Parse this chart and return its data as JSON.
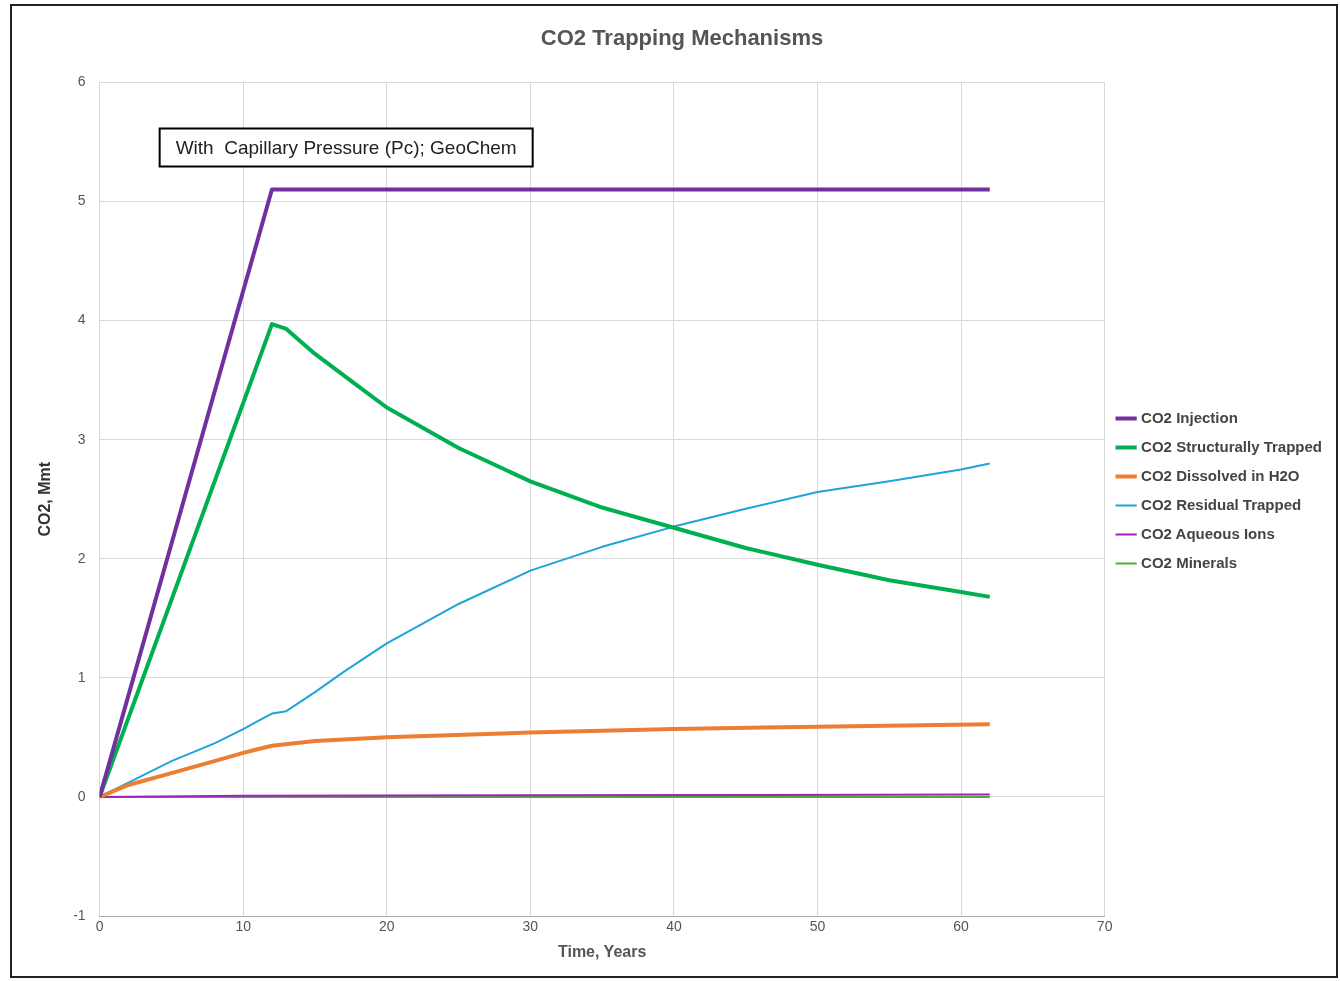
{
  "chart_data": {
    "type": "line",
    "title": "CO2 Trapping Mechanisms",
    "xlabel": "Time, Years",
    "ylabel": "CO2, Mmt",
    "annotations": [
      "With  Capillary Pressure (Pc); GeoChem"
    ],
    "xlim": [
      0,
      70
    ],
    "xticks": [
      0,
      10,
      20,
      30,
      40,
      50,
      60,
      70
    ],
    "ylim": [
      -1,
      6
    ],
    "yticks": [
      -1,
      0,
      1,
      2,
      3,
      4,
      5,
      6
    ],
    "grid": true,
    "legend": "right",
    "marker": "none",
    "line_style": "solid",
    "series": [
      {
        "name": "CO2 Injection",
        "color": "#7030a0",
        "x": [
          0,
          12,
          62
        ],
        "values": [
          0,
          5.1,
          5.1
        ]
      },
      {
        "name": "CO2 Structurally Trapped",
        "color": "#00b050",
        "x": [
          0,
          12,
          13,
          15,
          18,
          20,
          25,
          30,
          35,
          40,
          45,
          50,
          55,
          60,
          62
        ],
        "values": [
          0,
          3.97,
          3.93,
          3.72,
          3.45,
          3.27,
          2.93,
          2.65,
          2.43,
          2.26,
          2.09,
          1.95,
          1.82,
          1.72,
          1.68
        ]
      },
      {
        "name": "CO2 Dissolved in H2O",
        "color": "#ed7d31",
        "x": [
          0,
          2,
          5,
          8,
          10,
          12,
          15,
          20,
          30,
          40,
          50,
          62
        ],
        "values": [
          0,
          0.1,
          0.2,
          0.3,
          0.37,
          0.43,
          0.47,
          0.5,
          0.54,
          0.57,
          0.59,
          0.61
        ]
      },
      {
        "name": "CO2 Residual Trapped",
        "color": "#1fa3dc",
        "x": [
          0,
          2,
          5,
          8,
          10,
          12,
          13,
          15,
          17,
          20,
          25,
          30,
          35,
          40,
          45,
          50,
          55,
          60,
          62
        ],
        "values": [
          0,
          0.12,
          0.3,
          0.45,
          0.57,
          0.7,
          0.72,
          0.88,
          1.05,
          1.29,
          1.62,
          1.9,
          2.1,
          2.27,
          2.42,
          2.56,
          2.65,
          2.75,
          2.8
        ]
      },
      {
        "name": "CO2 Aqueous Ions",
        "color": "#a020c0",
        "x": [
          0,
          10,
          62
        ],
        "values": [
          0,
          0.01,
          0.02
        ]
      },
      {
        "name": "CO2 Minerals",
        "color": "#4caf30",
        "x": [
          0,
          62
        ],
        "values": [
          0,
          0
        ]
      }
    ]
  }
}
